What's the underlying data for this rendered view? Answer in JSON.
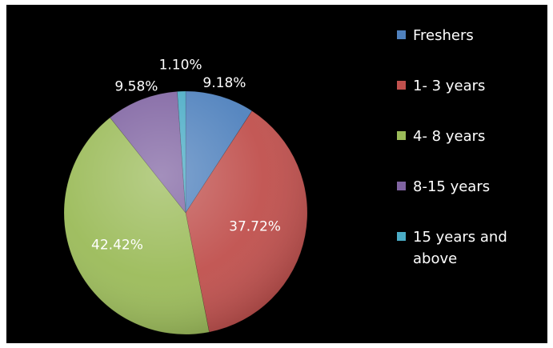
{
  "chart_data": {
    "type": "pie",
    "slices": [
      {
        "label": "Freshers",
        "value": 9.18,
        "display": "9.18%",
        "color": "#4f81bd"
      },
      {
        "label": "1- 3 years",
        "value": 37.72,
        "display": "37.72%",
        "color": "#c0504d"
      },
      {
        "label": "4- 8 years",
        "value": 42.42,
        "display": "42.42%",
        "color": "#9bbb59"
      },
      {
        "label": "8-15 years",
        "value": 9.58,
        "display": "9.58%",
        "color": "#8064a2"
      },
      {
        "label": "15 years and above",
        "legend_lines": [
          "15 years and",
          "above"
        ],
        "value": 1.1,
        "display": "1.10%",
        "color": "#4bacc6"
      }
    ],
    "legend_position": "right"
  }
}
